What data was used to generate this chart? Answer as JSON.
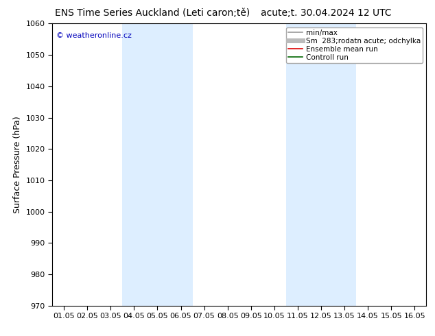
{
  "title": "ENS Time Series Auckland (Leti caron;tě)     acute;t. 30.04.2024 12 UTC",
  "title_left": "ENS Time Series Auckland (Leti caron;tě)",
  "title_right": "acute;t. 30.04.2024 12 UTC",
  "ylabel": "Surface Pressure (hPa)",
  "ylim": [
    970,
    1060
  ],
  "yticks": [
    970,
    980,
    990,
    1000,
    1010,
    1020,
    1030,
    1040,
    1050,
    1060
  ],
  "xtick_labels": [
    "01.05",
    "02.05",
    "03.05",
    "04.05",
    "05.05",
    "06.05",
    "07.05",
    "08.05",
    "09.05",
    "10.05",
    "11.05",
    "12.05",
    "13.05",
    "14.05",
    "15.05",
    "16.05"
  ],
  "shade_bands": [
    {
      "xstart": 3,
      "xend": 5
    },
    {
      "xstart": 10,
      "xend": 12
    }
  ],
  "shade_color": "#ddeeff",
  "watermark": "© weatheronline.cz",
  "watermark_color": "#0000bb",
  "legend_items": [
    {
      "label": "min/max",
      "color": "#999999",
      "lw": 1.2
    },
    {
      "label": "Sm  283;rodatn acute; odchylka",
      "color": "#bbbbbb",
      "lw": 5
    },
    {
      "label": "Ensemble mean run",
      "color": "#dd0000",
      "lw": 1.2
    },
    {
      "label": "Controll run",
      "color": "#006600",
      "lw": 1.2
    }
  ],
  "background_color": "#ffffff",
  "title_fontsize": 10,
  "axis_label_fontsize": 9,
  "tick_fontsize": 8,
  "legend_fontsize": 7.5
}
